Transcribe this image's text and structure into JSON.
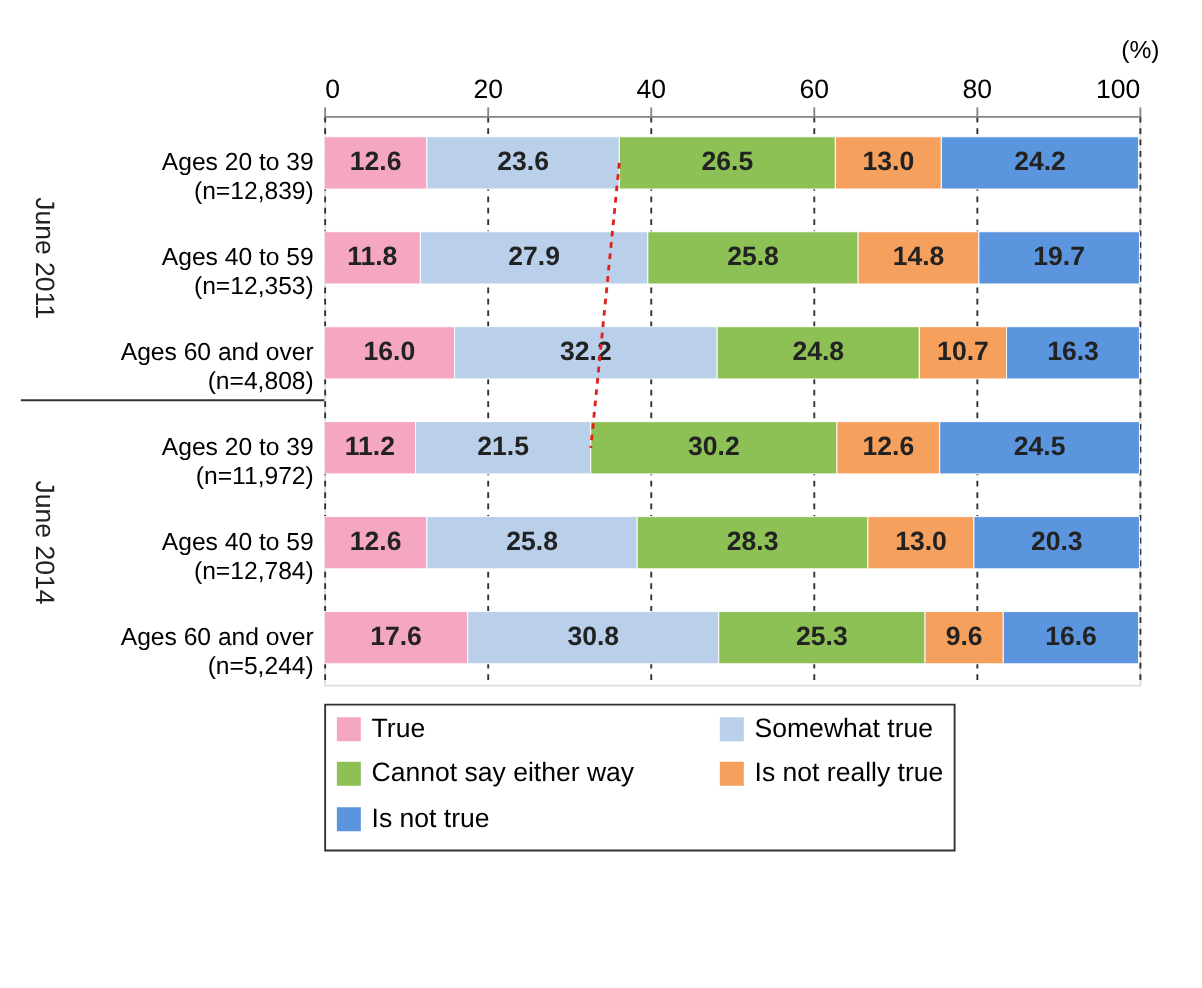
{
  "chart_data": {
    "type": "bar",
    "orientation": "horizontal",
    "stacked": true,
    "grid": "x",
    "legend": "bottom",
    "xlabel": "(%)",
    "categories": [
      "Ages 20 to 39 (n=12,839)",
      "Ages 40 to 59 (n=12,353)",
      "Ages 60 and over (n=4,808)",
      "Ages 20 to 39 (n=11,972)",
      "Ages 40 to 59 (n=12,784)",
      "Ages 60 and over (n=5,244)"
    ],
    "annotations": [
      "June 2011",
      "June 2014"
    ],
    "xlim": [
      0,
      100
    ],
    "xticks": [
      0,
      20,
      40,
      60,
      80,
      100
    ],
    "series": [
      {
        "name": "True",
        "color": "#f4a6c3",
        "values": [
          12.6,
          11.8,
          16.0,
          11.2,
          12.6,
          17.6
        ],
        "value_labels": [
          "12.6",
          "11.8",
          "16.0",
          "11.2",
          "12.6",
          "17.6"
        ]
      },
      {
        "name": "Somewhat true",
        "color": "#b9cfea",
        "values": [
          23.6,
          27.9,
          32.2,
          21.5,
          25.8,
          30.8
        ],
        "value_labels": [
          "23.6",
          "27.9",
          "32.2",
          "21.5",
          "25.8",
          "30.8"
        ]
      },
      {
        "name": "Cannot say either way",
        "color": "#8dc156",
        "values": [
          26.5,
          25.8,
          24.8,
          30.2,
          28.3,
          25.3
        ],
        "value_labels": [
          "26.5",
          "25.8",
          "24.8",
          "30.2",
          "28.3",
          "25.3"
        ]
      },
      {
        "name": "Is not really true",
        "color": "#f6a05e",
        "values": [
          13.0,
          14.8,
          10.7,
          12.6,
          13.0,
          9.6
        ],
        "value_labels": [
          "13.0",
          "14.8",
          "10.7",
          "12.6",
          "13.0",
          "9.6"
        ]
      },
      {
        "name": "Is not true",
        "color": "#5b95dd",
        "values": [
          24.2,
          19.7,
          16.3,
          24.5,
          20.3,
          16.6
        ],
        "value_labels": [
          "24.2",
          "19.7",
          "16.3",
          "24.5",
          "20.3",
          "16.6"
        ]
      }
    ]
  }
}
